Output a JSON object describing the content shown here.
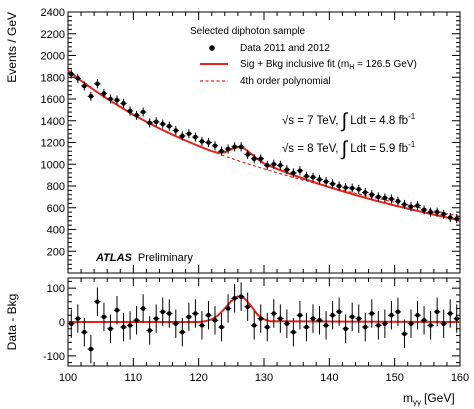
{
  "chart_data": [
    {
      "type": "scatter",
      "panel": "main",
      "xlabel": "m",
      "xlabel_sub": "γγ",
      "xlabel_unit": "[GeV]",
      "ylabel": "Events / GeV",
      "xlim": [
        100,
        160
      ],
      "ylim": [
        0,
        2400
      ],
      "xticks": [
        100,
        110,
        120,
        130,
        140,
        150,
        160
      ],
      "yticks": [
        200,
        400,
        600,
        800,
        1000,
        1200,
        1400,
        1600,
        1800,
        2000,
        2200,
        2400
      ],
      "legend": {
        "header": "Selected diphoton sample",
        "entries": [
          "Data 2011 and 2012",
          "Sig + Bkg inclusive fit (m",
          "4th order polynomial"
        ],
        "fit_mass_sub": "H",
        "fit_mass_value": " = 126.5 GeV)"
      },
      "annotations": {
        "lumi_2011": {
          "sqrt": "√s",
          "energy": " = 7 TeV,",
          "integral": "∫",
          "ldt": " Ldt = 4.8 fb",
          "exp": "-1"
        },
        "lumi_2012": {
          "sqrt": "√s",
          "energy": " = 8 TeV,",
          "integral": "∫",
          "ldt": " Ldt = 5.9 fb",
          "exp": "-1"
        },
        "experiment": "ATLAS",
        "status": "Preliminary"
      },
      "series": [
        {
          "name": "Data 2011 and 2012",
          "style": "points",
          "color": "#000000",
          "x": [
            100.5,
            101.5,
            102.5,
            103.5,
            104.5,
            105.5,
            106.5,
            107.5,
            108.5,
            109.5,
            110.5,
            111.5,
            112.5,
            113.5,
            114.5,
            115.5,
            116.5,
            117.5,
            118.5,
            119.5,
            120.5,
            121.5,
            122.5,
            123.5,
            124.5,
            125.5,
            126.5,
            127.5,
            128.5,
            129.5,
            130.5,
            131.5,
            132.5,
            133.5,
            134.5,
            135.5,
            136.5,
            137.5,
            138.5,
            139.5,
            140.5,
            141.5,
            142.5,
            143.5,
            144.5,
            145.5,
            146.5,
            147.5,
            148.5,
            149.5,
            150.5,
            151.5,
            152.5,
            153.5,
            154.5,
            155.5,
            156.5,
            157.5,
            158.5,
            159.5
          ],
          "y": [
            1830,
            1790,
            1720,
            1625,
            1740,
            1650,
            1600,
            1590,
            1560,
            1490,
            1450,
            1480,
            1380,
            1390,
            1370,
            1350,
            1310,
            1260,
            1280,
            1250,
            1210,
            1200,
            1170,
            1120,
            1140,
            1160,
            1160,
            1090,
            1050,
            1050,
            990,
            1000,
            990,
            950,
            920,
            940,
            890,
            880,
            860,
            840,
            820,
            800,
            785,
            780,
            770,
            740,
            720,
            700,
            690,
            680,
            660,
            630,
            610,
            620,
            580,
            560,
            560,
            540,
            510,
            500
          ],
          "yerr": 42
        },
        {
          "name": "Sig + Bkg inclusive fit (mH = 126.5 GeV)",
          "style": "line",
          "color": "#e8231d",
          "x": [
            100,
            102,
            104,
            106,
            108,
            110,
            112,
            114,
            116,
            118,
            120,
            122,
            123,
            124,
            125,
            126,
            127,
            128,
            129,
            130,
            132,
            134,
            136,
            138,
            140,
            142,
            144,
            146,
            148,
            150,
            152,
            154,
            156,
            158,
            160
          ],
          "y": [
            1860,
            1768,
            1682,
            1602,
            1527,
            1456,
            1391,
            1329,
            1272,
            1218,
            1167,
            1120,
            1105,
            1110,
            1138,
            1159,
            1145,
            1098,
            1048,
            1007,
            957,
            911,
            869,
            828,
            789,
            752,
            716,
            683,
            651,
            621,
            592,
            564,
            537,
            510,
            484
          ]
        },
        {
          "name": "4th order polynomial",
          "style": "dashed",
          "color": "#e8231d",
          "x": [
            100,
            102,
            104,
            106,
            108,
            110,
            112,
            114,
            116,
            118,
            120,
            122,
            124,
            126,
            128,
            130,
            132,
            134,
            136,
            138,
            140,
            142,
            144,
            146,
            148,
            150,
            152,
            154,
            156,
            158,
            160
          ],
          "y": [
            1860,
            1768,
            1682,
            1602,
            1527,
            1456,
            1391,
            1329,
            1272,
            1218,
            1167,
            1120,
            1075,
            1034,
            995,
            958,
            922,
            887,
            854,
            822,
            791,
            761,
            733,
            705,
            678,
            651,
            625,
            599,
            573,
            546,
            520
          ]
        }
      ]
    },
    {
      "type": "scatter",
      "panel": "residual",
      "ylabel": "Data - Bkg",
      "xlim": [
        100,
        160
      ],
      "ylim": [
        -130,
        130
      ],
      "yticks": [
        -100,
        0,
        100
      ],
      "series": [
        {
          "name": "Data - Bkg",
          "style": "points",
          "color": "#000000",
          "x": [
            100.5,
            101.5,
            102.5,
            103.5,
            104.5,
            105.5,
            106.5,
            107.5,
            108.5,
            109.5,
            110.5,
            111.5,
            112.5,
            113.5,
            114.5,
            115.5,
            116.5,
            117.5,
            118.5,
            119.5,
            120.5,
            121.5,
            122.5,
            123.5,
            124.5,
            125.5,
            126.5,
            127.5,
            128.5,
            129.5,
            130.5,
            131.5,
            132.5,
            133.5,
            134.5,
            135.5,
            136.5,
            137.5,
            138.5,
            139.5,
            140.5,
            141.5,
            142.5,
            143.5,
            144.5,
            145.5,
            146.5,
            147.5,
            148.5,
            149.5,
            150.5,
            151.5,
            152.5,
            153.5,
            154.5,
            155.5,
            156.5,
            157.5,
            158.5,
            159.5
          ],
          "y": [
            -5,
            10,
            -30,
            -80,
            60,
            15,
            -20,
            35,
            -15,
            -10,
            5,
            40,
            -25,
            10,
            30,
            25,
            -5,
            -30,
            15,
            25,
            -10,
            20,
            5,
            -15,
            40,
            70,
            75,
            45,
            -10,
            10,
            -15,
            25,
            10,
            -5,
            -30,
            20,
            -15,
            10,
            5,
            -10,
            20,
            30,
            -20,
            15,
            10,
            -15,
            25,
            -10,
            -5,
            20,
            30,
            -35,
            -5,
            20,
            5,
            -10,
            30,
            -5,
            25,
            10
          ],
          "yerr": 42
        },
        {
          "name": "Sig + Bkg - Bkg",
          "style": "line",
          "color": "#e8231d",
          "x": [
            100,
            120,
            121,
            122,
            123,
            124,
            125,
            126,
            127,
            128,
            129,
            130,
            131,
            160
          ],
          "y": [
            0,
            0,
            2,
            8,
            20,
            40,
            62,
            76,
            70,
            48,
            22,
            8,
            2,
            0
          ]
        }
      ]
    }
  ]
}
